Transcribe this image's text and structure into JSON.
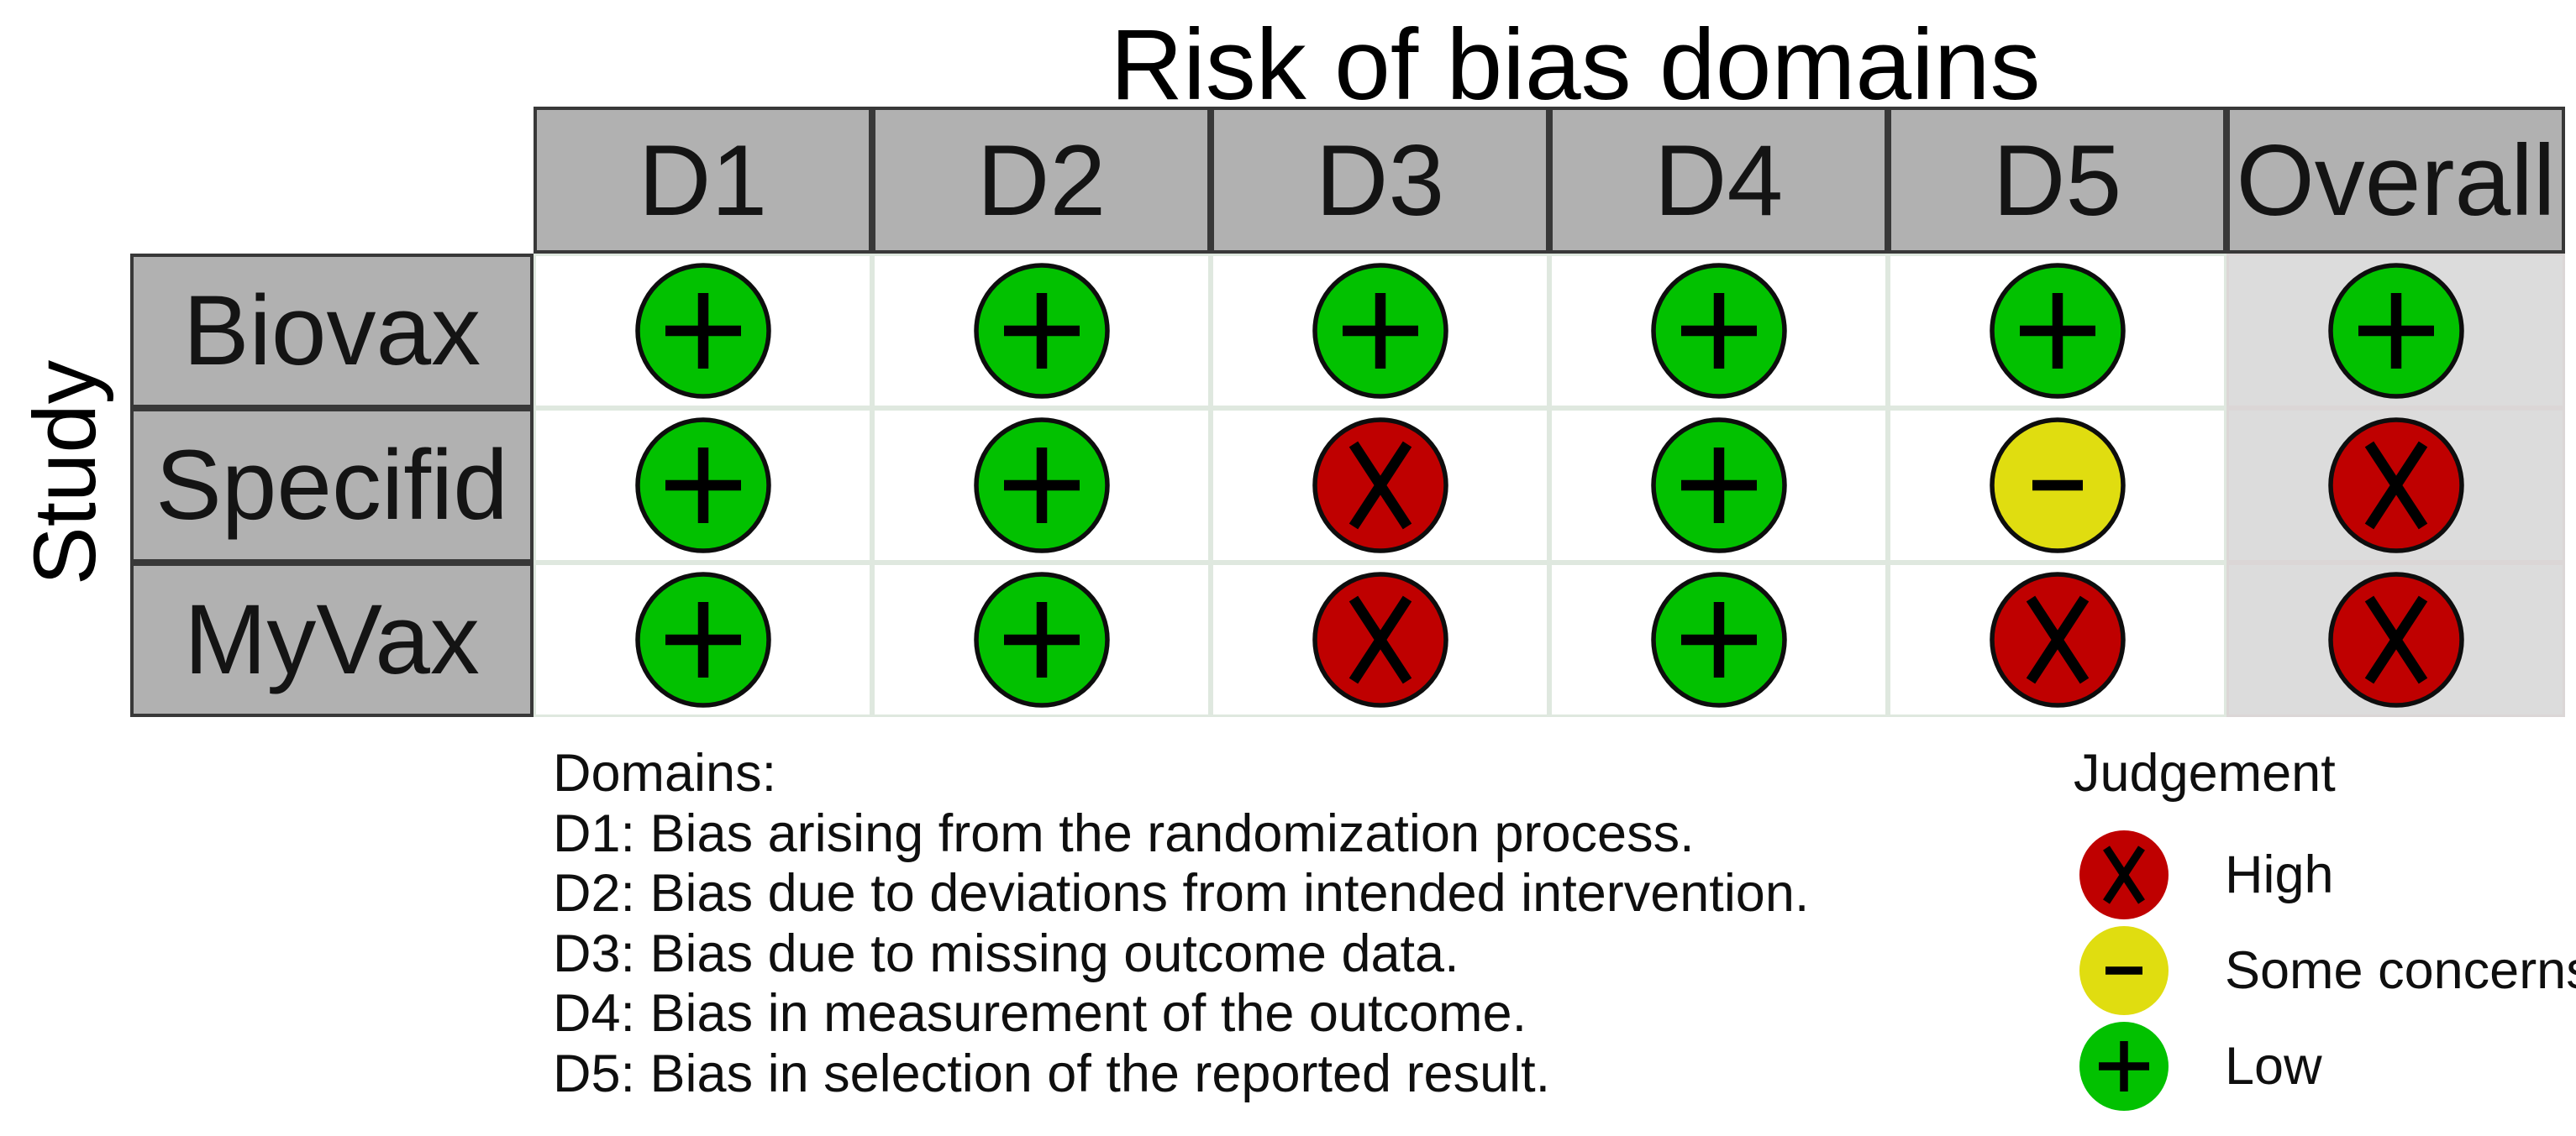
{
  "title": "Risk of bias domains",
  "y_axis_label": "Study",
  "chart_data": {
    "type": "table",
    "title": "Risk of bias domains",
    "ylabel": "Study",
    "columns": [
      "D1",
      "D2",
      "D3",
      "D4",
      "D5",
      "Overall"
    ],
    "rows": [
      {
        "study": "Biovax",
        "judgements": [
          "low",
          "low",
          "low",
          "low",
          "low",
          "low"
        ]
      },
      {
        "study": "Specifid",
        "judgements": [
          "low",
          "low",
          "high",
          "low",
          "some_concerns",
          "high"
        ]
      },
      {
        "study": "MyVax",
        "judgements": [
          "low",
          "low",
          "high",
          "low",
          "high",
          "high"
        ]
      }
    ],
    "symbols": {
      "low": "+",
      "some_concerns": "-",
      "high": "x"
    },
    "legend_position": "bottom-right",
    "grid": true
  },
  "domains_legend": {
    "heading": "Domains:",
    "items": [
      "D1: Bias arising from the randomization process.",
      "D2: Bias due to deviations from intended intervention.",
      "D3: Bias due to missing outcome data.",
      "D4: Bias in measurement of the outcome.",
      "D5: Bias in selection of the reported result."
    ]
  },
  "judgement_legend": {
    "heading": "Judgement",
    "items": [
      {
        "judgement": "high",
        "symbol": "x",
        "label": "High"
      },
      {
        "judgement": "some_concerns",
        "symbol": "-",
        "label": "Some concerns"
      },
      {
        "judgement": "low",
        "symbol": "+",
        "label": "Low"
      }
    ]
  },
  "colors": {
    "low": "#02c100",
    "some_concerns": "#e0dd10",
    "high": "#bf0000",
    "header_bg": "#b1b1b1",
    "header_border": "#383838",
    "overall_bg": "#dcdcdc",
    "overall_border": "#dbd6d6",
    "grid_border": "#dfe8df",
    "circle_stroke": "#0d0d0d",
    "symbol": "#000000"
  }
}
